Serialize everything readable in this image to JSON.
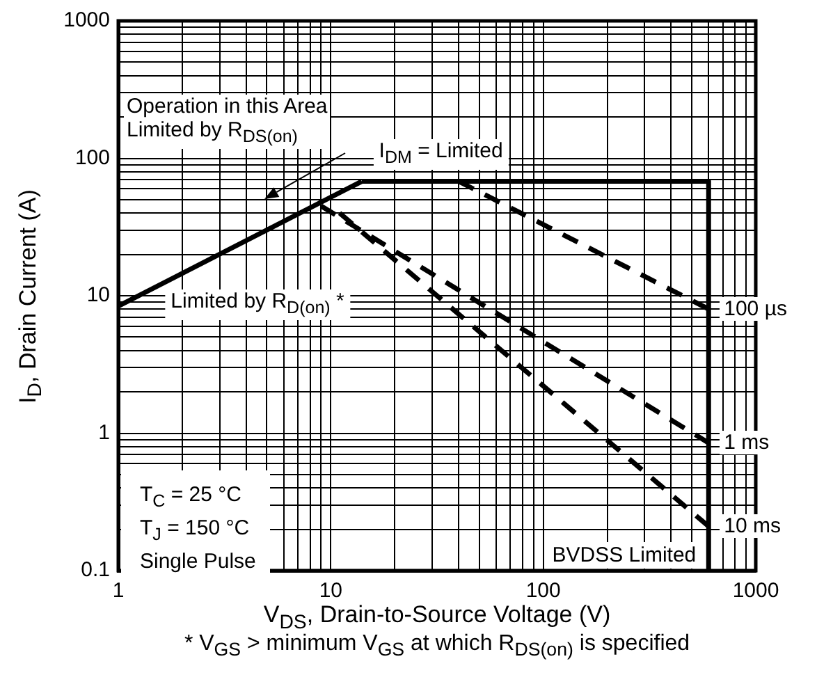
{
  "chart_data": {
    "type": "line",
    "xlabel": "V$_{DS}$, Drain-to-Source Voltage (V)",
    "ylabel": "I$_{D}$, Drain Current (A)",
    "log": "xy",
    "grid": true,
    "legend": false,
    "marker": "none",
    "xlim": [
      1,
      1000
    ],
    "ylim": [
      0.1,
      1000
    ],
    "xticks": [
      1,
      {
        "value": 2,
        "label": null
      },
      {
        "value": 3,
        "label": null
      },
      {
        "value": 4,
        "label": null
      },
      {
        "value": 5,
        "label": null
      },
      {
        "value": 6,
        "label": null
      },
      {
        "value": 7,
        "label": null
      },
      {
        "value": 8,
        "label": null
      },
      {
        "value": 9,
        "label": null
      },
      10,
      {
        "value": 20,
        "label": null
      },
      {
        "value": 30,
        "label": null
      },
      {
        "value": 40,
        "label": null
      },
      {
        "value": 50,
        "label": null
      },
      {
        "value": 60,
        "label": null
      },
      {
        "value": 70,
        "label": null
      },
      {
        "value": 80,
        "label": null
      },
      {
        "value": 90,
        "label": null
      },
      100,
      {
        "value": 200,
        "label": null
      },
      {
        "value": 300,
        "label": null
      },
      {
        "value": 400,
        "label": null
      },
      {
        "value": 500,
        "label": null
      },
      {
        "value": 600,
        "label": null
      },
      {
        "value": 700,
        "label": null
      },
      {
        "value": 800,
        "label": null
      },
      {
        "value": 900,
        "label": null
      },
      1000
    ],
    "yticks": [
      0.1,
      {
        "value": 0.2,
        "label": null
      },
      {
        "value": 0.3,
        "label": null
      },
      {
        "value": 0.4,
        "label": null
      },
      {
        "value": 0.5,
        "label": null
      },
      {
        "value": 0.6,
        "label": null
      },
      {
        "value": 0.7,
        "label": null
      },
      {
        "value": 0.8,
        "label": null
      },
      {
        "value": 0.9,
        "label": null
      },
      1,
      {
        "value": 2,
        "label": null
      },
      {
        "value": 3,
        "label": null
      },
      {
        "value": 4,
        "label": null
      },
      {
        "value": 5,
        "label": null
      },
      {
        "value": 6,
        "label": null
      },
      {
        "value": 7,
        "label": null
      },
      {
        "value": 8,
        "label": null
      },
      {
        "value": 9,
        "label": null
      },
      10,
      {
        "value": 20,
        "label": null
      },
      {
        "value": 30,
        "label": null
      },
      {
        "value": 40,
        "label": null
      },
      {
        "value": 50,
        "label": null
      },
      {
        "value": 60,
        "label": null
      },
      {
        "value": 70,
        "label": null
      },
      {
        "value": 80,
        "label": null
      },
      {
        "value": 90,
        "label": null
      },
      100,
      {
        "value": 200,
        "label": null
      },
      {
        "value": 300,
        "label": null
      },
      {
        "value": 400,
        "label": null
      },
      {
        "value": 500,
        "label": null
      },
      {
        "value": 600,
        "label": null
      },
      {
        "value": 700,
        "label": null
      },
      {
        "value": 800,
        "label": null
      },
      {
        "value": 900,
        "label": null
      },
      1000
    ],
    "series": [
      {
        "color": "#000000",
        "line_style": "solid",
        "x": [
          1,
          14
        ],
        "values": [
          8.4,
          68
        ]
      },
      {
        "color": "#000000",
        "line_style": "solid",
        "x": [
          14,
          600
        ],
        "values": [
          68,
          68
        ]
      },
      {
        "color": "#000000",
        "line_style": "solid",
        "x": [
          600,
          600
        ],
        "values": [
          68,
          0.1
        ]
      },
      {
        "name": "100 µs",
        "color": "#000000",
        "line_style": "dashed",
        "x": [
          40,
          600
        ],
        "values": [
          68,
          8
        ]
      },
      {
        "name": "1 ms",
        "color": "#000000",
        "line_style": "dashed",
        "x": [
          9,
          600
        ],
        "values": [
          45,
          0.85
        ]
      },
      {
        "name": "10 ms",
        "color": "#000000",
        "line_style": "dashed",
        "x": [
          11,
          600
        ],
        "values": [
          40,
          0.21
        ]
      }
    ],
    "annotations": [
      "Operation in this Area\nLimited by R$_{DS(on)}$",
      {
        "text": "I$_{DM}$ = Limited",
        "x": 33,
        "y": 68
      },
      "Limited by R$_{D(on)}$ *",
      {
        "text": "BVDSS Limited",
        "x": 600,
        "y": 0.13
      },
      "T$_{C}$ = 25 °C",
      "T$_{J}$ = 150 °C",
      "Single Pulse",
      "* V$_{GS}$ > minimum V$_{GS}$ at which R$_{DS(on)}$ is specified"
    ]
  }
}
